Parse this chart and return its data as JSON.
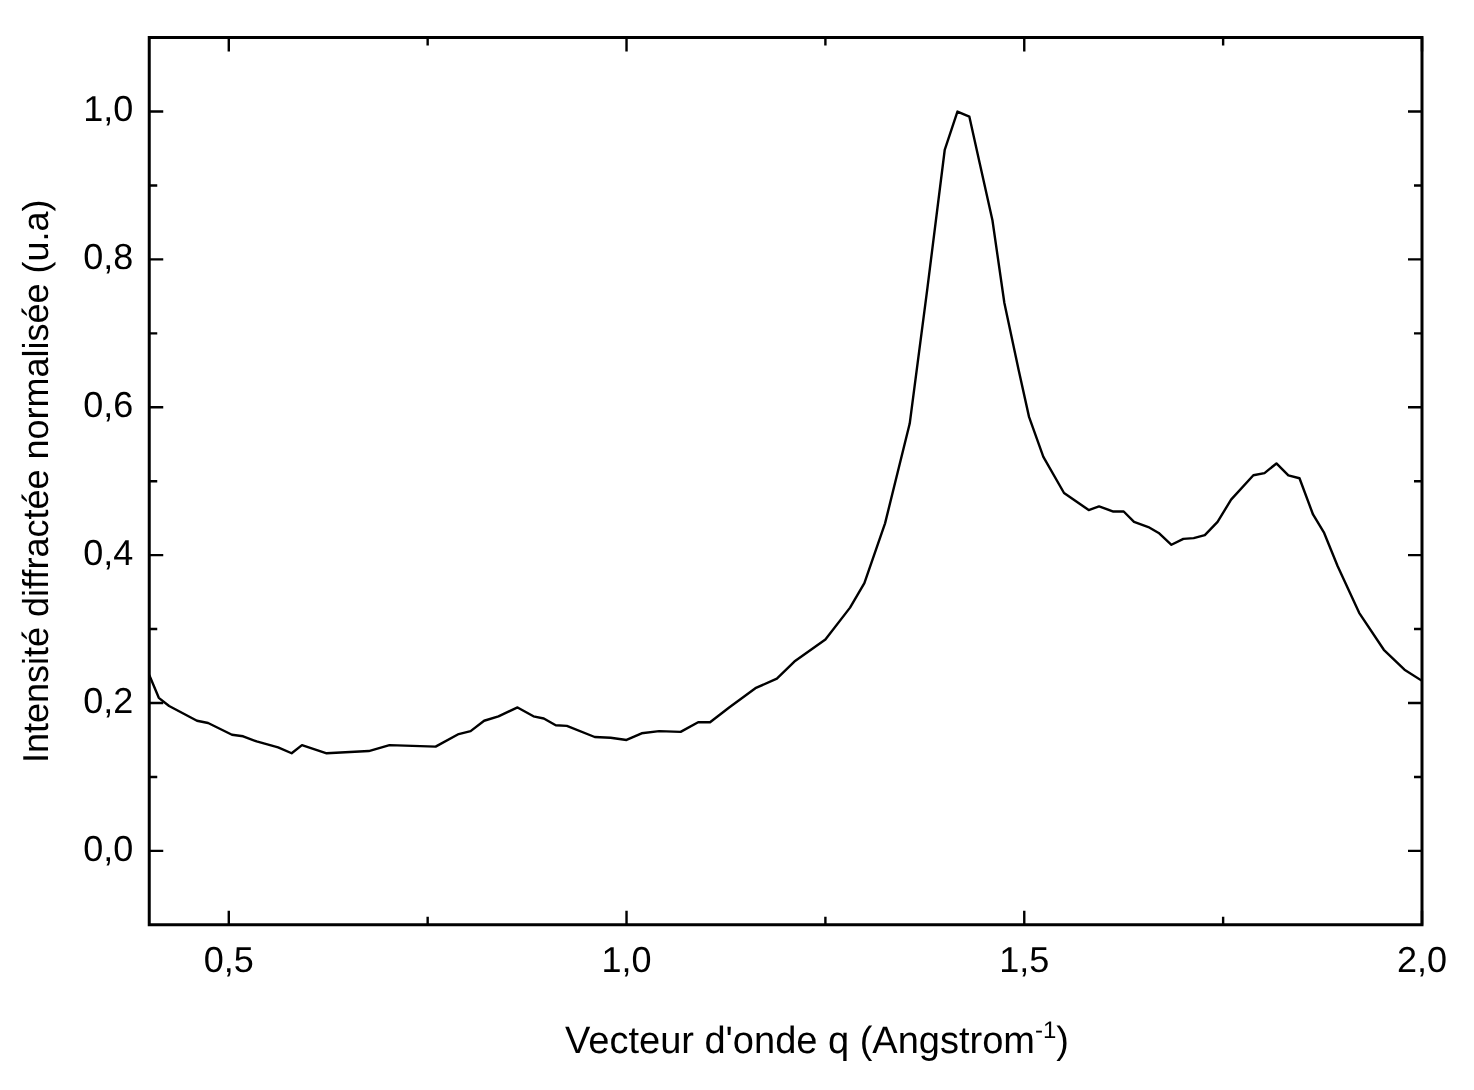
{
  "chart_data": {
    "type": "line",
    "xlabel": "Vecteur d'onde q (Angstrom$^{-1}$)",
    "ylabel": "Intensité diffractée normalisée (u.a)",
    "xlim": [
      0.4,
      2.0
    ],
    "ylim": [
      -0.1,
      1.1
    ],
    "xticks": [
      {
        "value": 0.5,
        "label": "0,5"
      },
      {
        "value": 0.75,
        "label": null
      },
      {
        "value": 1.0,
        "label": "1,0"
      },
      {
        "value": 1.25,
        "label": null
      },
      {
        "value": 1.5,
        "label": "1,5"
      },
      {
        "value": 1.75,
        "label": null
      },
      {
        "value": 2.0,
        "label": "2,0"
      }
    ],
    "yticks": [
      {
        "value": 0.0,
        "label": "0,0"
      },
      {
        "value": 0.1,
        "label": null
      },
      {
        "value": 0.2,
        "label": "0,2"
      },
      {
        "value": 0.3,
        "label": null
      },
      {
        "value": 0.4,
        "label": "0,4"
      },
      {
        "value": 0.5,
        "label": null
      },
      {
        "value": 0.6,
        "label": "0,6"
      },
      {
        "value": 0.7,
        "label": null
      },
      {
        "value": 0.8,
        "label": "0,8"
      },
      {
        "value": 0.9,
        "label": null
      },
      {
        "value": 1.0,
        "label": "1,0"
      }
    ],
    "legend": false,
    "marker": "none",
    "line_style": "solid",
    "series": [
      {
        "color": "#000000",
        "x": [
          0.4,
          0.412,
          0.425,
          0.46,
          0.474,
          0.504,
          0.518,
          0.535,
          0.562,
          0.579,
          0.592,
          0.623,
          0.676,
          0.702,
          0.76,
          0.789,
          0.804,
          0.821,
          0.839,
          0.863,
          0.883,
          0.896,
          0.911,
          0.925,
          0.96,
          0.98,
          1.0,
          1.019,
          1.041,
          1.068,
          1.09,
          1.105,
          1.129,
          1.162,
          1.189,
          1.211,
          1.25,
          1.281,
          1.299,
          1.325,
          1.356,
          1.378,
          1.4,
          1.416,
          1.431,
          1.444,
          1.46,
          1.475,
          1.493,
          1.506,
          1.524,
          1.55,
          1.581,
          1.594,
          1.612,
          1.625,
          1.638,
          1.656,
          1.669,
          1.685,
          1.7,
          1.713,
          1.727,
          1.743,
          1.76,
          1.788,
          1.802,
          1.817,
          1.832,
          1.846,
          1.863,
          1.877,
          1.894,
          1.921,
          1.952,
          1.978,
          2.0
        ],
        "values": [
          0.238,
          0.207,
          0.196,
          0.176,
          0.173,
          0.157,
          0.155,
          0.148,
          0.14,
          0.132,
          0.143,
          0.132,
          0.135,
          0.143,
          0.141,
          0.158,
          0.162,
          0.176,
          0.182,
          0.194,
          0.182,
          0.179,
          0.17,
          0.169,
          0.154,
          0.153,
          0.15,
          0.159,
          0.162,
          0.161,
          0.174,
          0.174,
          0.194,
          0.22,
          0.233,
          0.256,
          0.286,
          0.329,
          0.362,
          0.443,
          0.578,
          0.759,
          0.948,
          1.0,
          0.993,
          0.93,
          0.853,
          0.741,
          0.65,
          0.587,
          0.533,
          0.484,
          0.461,
          0.466,
          0.459,
          0.459,
          0.445,
          0.438,
          0.43,
          0.414,
          0.422,
          0.423,
          0.427,
          0.445,
          0.475,
          0.508,
          0.511,
          0.524,
          0.508,
          0.504,
          0.455,
          0.43,
          0.385,
          0.322,
          0.272,
          0.245,
          0.23
        ]
      }
    ]
  }
}
